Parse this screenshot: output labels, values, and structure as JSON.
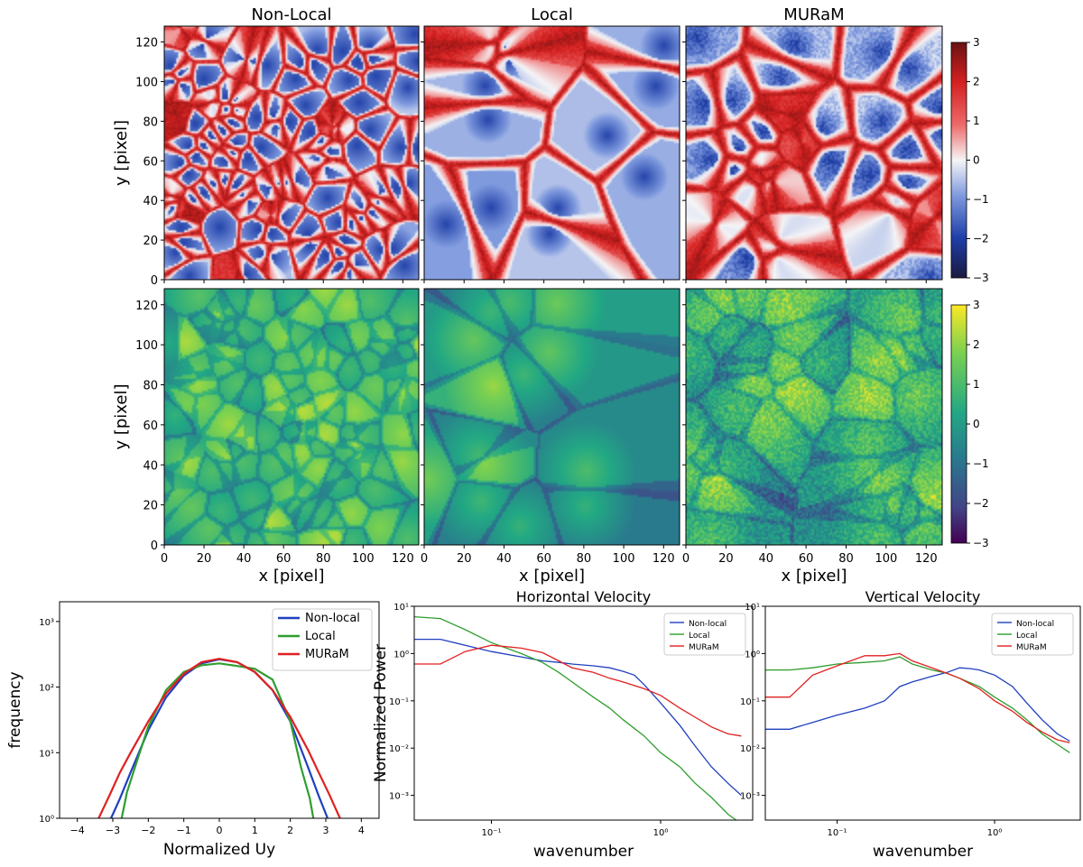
{
  "chart_data": [
    {
      "type": "heatmap",
      "panel": "top-left",
      "title": "Non-Local",
      "field": "horizontal velocity map (cellular network)",
      "colormap": "seismic (blue-white-red)",
      "xlabel": "",
      "ylabel": "y [pixel]",
      "xlim": [
        0,
        128
      ],
      "ylim": [
        0,
        128
      ],
      "yticks": [
        "0",
        "20",
        "40",
        "60",
        "80",
        "100",
        "120"
      ],
      "clim": [
        -3,
        3
      ],
      "cell_scale": "small"
    },
    {
      "type": "heatmap",
      "panel": "top-middle",
      "title": "Local",
      "field": "horizontal velocity map (cellular network)",
      "colormap": "seismic (blue-white-red)",
      "xlim": [
        0,
        128
      ],
      "ylim": [
        0,
        128
      ],
      "clim": [
        -3,
        3
      ],
      "cell_scale": "large"
    },
    {
      "type": "heatmap",
      "panel": "top-right",
      "title": "MURaM",
      "field": "horizontal velocity map (cellular network)",
      "colormap": "seismic (blue-white-red)",
      "xlim": [
        0,
        128
      ],
      "ylim": [
        0,
        128
      ],
      "clim": [
        -3,
        3
      ],
      "colorbar_ticks": [
        "3",
        "2",
        "1",
        "0",
        "−1",
        "−2",
        "−3"
      ],
      "cell_scale": "medium"
    },
    {
      "type": "heatmap",
      "panel": "middle-left",
      "field": "vertical velocity map",
      "colormap": "viridis",
      "xlabel": "x [pixel]",
      "ylabel": "y [pixel]",
      "xlim": [
        0,
        128
      ],
      "ylim": [
        0,
        128
      ],
      "xticks": [
        "0",
        "20",
        "40",
        "60",
        "80",
        "100",
        "120"
      ],
      "yticks": [
        "0",
        "20",
        "40",
        "60",
        "80",
        "100",
        "120"
      ],
      "clim": [
        -3,
        3
      ]
    },
    {
      "type": "heatmap",
      "panel": "middle-center",
      "field": "vertical velocity map",
      "colormap": "viridis",
      "xlabel": "x [pixel]",
      "xlim": [
        0,
        128
      ],
      "ylim": [
        0,
        128
      ],
      "xticks": [
        "0",
        "20",
        "40",
        "60",
        "80",
        "100",
        "120"
      ],
      "clim": [
        -3,
        3
      ]
    },
    {
      "type": "heatmap",
      "panel": "middle-right",
      "field": "vertical velocity map",
      "colormap": "viridis",
      "xlabel": "x [pixel]",
      "xlim": [
        0,
        128
      ],
      "ylim": [
        0,
        128
      ],
      "xticks": [
        "0",
        "20",
        "40",
        "60",
        "80",
        "100",
        "120"
      ],
      "clim": [
        -3,
        3
      ],
      "colorbar_ticks": [
        "3",
        "2",
        "1",
        "0",
        "−1",
        "−2",
        "−3"
      ]
    },
    {
      "type": "line",
      "panel": "bottom-left",
      "xlabel": "Normalized Uy",
      "ylabel": "frequency",
      "xlim": [
        -4.5,
        4.5
      ],
      "ylim": [
        1,
        2000
      ],
      "yscale": "log",
      "xticks": [
        "−4",
        "−3",
        "−2",
        "−1",
        "0",
        "1",
        "2",
        "3",
        "4"
      ],
      "ytick_labels": [
        "10⁰",
        "10¹",
        "10²",
        "10³"
      ],
      "legend": {
        "placement": "upper-right",
        "entries": [
          "Non-local",
          "Local",
          "MURaM"
        ]
      },
      "series": [
        {
          "name": "Non-local",
          "color": "#1f3fbf",
          "x": [
            -3.05,
            -2.8,
            -2.5,
            -2.0,
            -1.5,
            -1.0,
            -0.5,
            0.0,
            0.5,
            1.0,
            1.5,
            2.0,
            2.5,
            2.8,
            3.05
          ],
          "y": [
            1,
            2,
            5,
            22,
            70,
            150,
            230,
            265,
            240,
            170,
            90,
            30,
            6,
            2.2,
            1
          ]
        },
        {
          "name": "Local",
          "color": "#2e9e2e",
          "x": [
            -2.75,
            -2.6,
            -2.3,
            -2.0,
            -1.5,
            -1.0,
            -0.5,
            0.0,
            0.5,
            1.0,
            1.5,
            2.0,
            2.3,
            2.55,
            2.65
          ],
          "y": [
            1,
            2.5,
            8,
            25,
            90,
            170,
            215,
            230,
            210,
            190,
            130,
            30,
            6,
            2,
            1
          ]
        },
        {
          "name": "MURaM",
          "color": "#e02020",
          "x": [
            -3.4,
            -3.1,
            -2.8,
            -2.5,
            -2.0,
            -1.5,
            -1.0,
            -0.5,
            0.0,
            0.5,
            1.0,
            1.5,
            2.0,
            2.5,
            2.8,
            3.1,
            3.4
          ],
          "y": [
            1,
            2.2,
            5,
            10,
            30,
            80,
            160,
            240,
            270,
            240,
            170,
            90,
            35,
            11,
            5,
            2.3,
            1
          ]
        }
      ]
    },
    {
      "type": "line",
      "panel": "bottom-center",
      "title": "Horizontal Velocity",
      "xlabel": "wavenumber",
      "ylabel": "Normalized Power",
      "xscale": "log",
      "yscale": "log",
      "xlim": [
        0.035,
        3.5
      ],
      "ylim": [
        0.0003,
        10
      ],
      "xtick_labels": [
        "10⁻¹",
        "10⁰"
      ],
      "ytick_labels": [
        "10⁻³",
        "10⁻²",
        "10⁻¹",
        "10⁰",
        "10¹"
      ],
      "legend": {
        "placement": "upper-right",
        "entries": [
          "Non-local",
          "Local",
          "MURaM"
        ]
      },
      "series": [
        {
          "name": "Non-local",
          "color": "#1f3fbf",
          "x": [
            0.035,
            0.05,
            0.07,
            0.1,
            0.15,
            0.2,
            0.25,
            0.3,
            0.4,
            0.5,
            0.6,
            0.7,
            0.8,
            1.0,
            1.3,
            1.6,
            2.0,
            2.5,
            3.0
          ],
          "y": [
            2.0,
            2.0,
            1.5,
            1.1,
            0.85,
            0.7,
            0.65,
            0.6,
            0.55,
            0.5,
            0.42,
            0.35,
            0.22,
            0.09,
            0.03,
            0.011,
            0.004,
            0.0018,
            0.001
          ]
        },
        {
          "name": "Local",
          "color": "#2e9e2e",
          "x": [
            0.035,
            0.05,
            0.07,
            0.1,
            0.15,
            0.2,
            0.25,
            0.3,
            0.4,
            0.5,
            0.6,
            0.8,
            1.0,
            1.3,
            1.6,
            2.0,
            2.5,
            3.0
          ],
          "y": [
            6.0,
            5.5,
            3.2,
            1.7,
            1.0,
            0.65,
            0.4,
            0.25,
            0.12,
            0.07,
            0.04,
            0.018,
            0.008,
            0.004,
            0.0018,
            0.0009,
            0.0004,
            0.00025
          ]
        },
        {
          "name": "MURaM",
          "color": "#e02020",
          "x": [
            0.035,
            0.05,
            0.07,
            0.1,
            0.15,
            0.2,
            0.25,
            0.3,
            0.4,
            0.5,
            0.6,
            0.8,
            1.0,
            1.3,
            1.6,
            2.0,
            2.5,
            3.0
          ],
          "y": [
            0.6,
            0.6,
            1.1,
            1.5,
            1.3,
            1.05,
            0.7,
            0.5,
            0.4,
            0.3,
            0.25,
            0.18,
            0.13,
            0.07,
            0.045,
            0.028,
            0.02,
            0.018
          ]
        }
      ]
    },
    {
      "type": "line",
      "panel": "bottom-right",
      "title": "Vertical Velocity",
      "xlabel": "wavenumber",
      "ylabel": "",
      "xscale": "log",
      "yscale": "log",
      "xlim": [
        0.035,
        3.5
      ],
      "ylim": [
        0.0003,
        10
      ],
      "xtick_labels": [
        "10⁻¹",
        "10⁰"
      ],
      "ytick_labels": [
        "10⁻³",
        "10⁻²",
        "10⁻¹",
        "10⁰",
        "10¹"
      ],
      "legend": {
        "placement": "upper-right",
        "entries": [
          "Non-local",
          "Local",
          "MURaM"
        ]
      },
      "series": [
        {
          "name": "Non-local",
          "color": "#1f3fbf",
          "x": [
            0.035,
            0.05,
            0.07,
            0.1,
            0.15,
            0.2,
            0.25,
            0.3,
            0.4,
            0.5,
            0.6,
            0.7,
            0.8,
            1.0,
            1.3,
            1.6,
            2.0,
            2.5,
            3.0
          ],
          "y": [
            0.025,
            0.025,
            0.035,
            0.05,
            0.07,
            0.1,
            0.2,
            0.25,
            0.33,
            0.4,
            0.5,
            0.48,
            0.45,
            0.35,
            0.2,
            0.09,
            0.04,
            0.02,
            0.014
          ]
        },
        {
          "name": "Local",
          "color": "#2e9e2e",
          "x": [
            0.035,
            0.05,
            0.07,
            0.1,
            0.15,
            0.2,
            0.25,
            0.3,
            0.4,
            0.5,
            0.6,
            0.8,
            1.0,
            1.3,
            1.6,
            2.0,
            2.5,
            3.0
          ],
          "y": [
            0.45,
            0.45,
            0.5,
            0.6,
            0.65,
            0.7,
            0.85,
            0.6,
            0.45,
            0.38,
            0.3,
            0.2,
            0.12,
            0.07,
            0.04,
            0.02,
            0.012,
            0.008
          ]
        },
        {
          "name": "MURaM",
          "color": "#e02020",
          "x": [
            0.035,
            0.05,
            0.07,
            0.1,
            0.15,
            0.2,
            0.25,
            0.3,
            0.4,
            0.5,
            0.6,
            0.8,
            1.0,
            1.3,
            1.6,
            2.0,
            2.5,
            3.0
          ],
          "y": [
            0.12,
            0.12,
            0.35,
            0.55,
            0.9,
            0.9,
            1.0,
            0.7,
            0.5,
            0.38,
            0.3,
            0.18,
            0.1,
            0.06,
            0.035,
            0.022,
            0.015,
            0.013
          ]
        }
      ]
    }
  ]
}
